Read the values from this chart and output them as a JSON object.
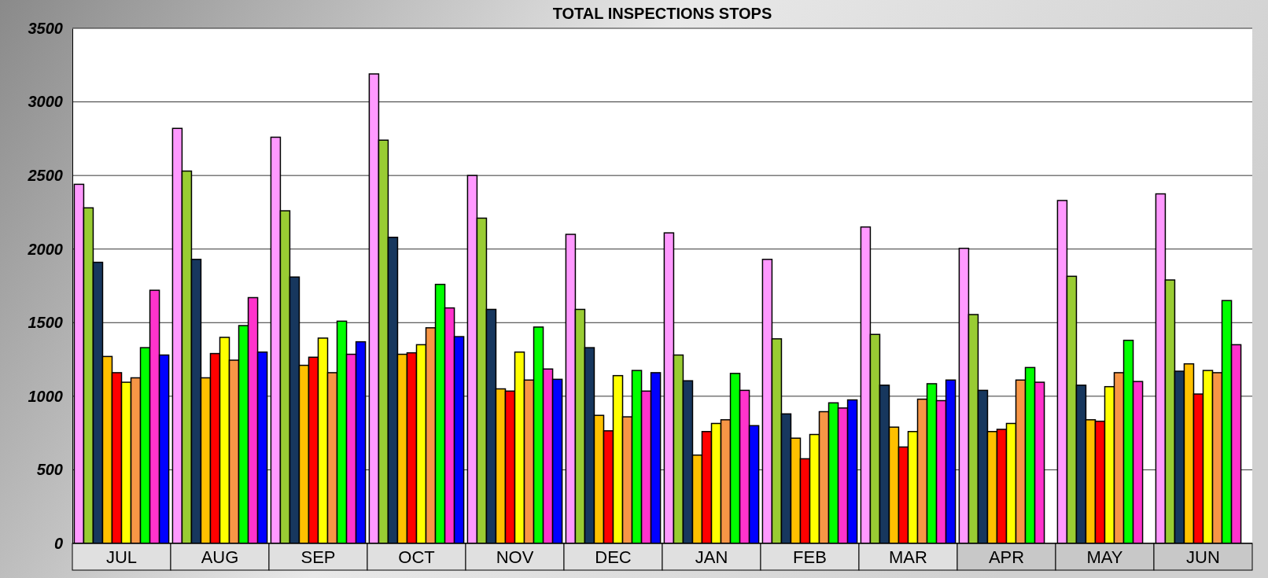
{
  "chart_data": {
    "type": "bar",
    "title": "TOTAL INSPECTIONS STOPS",
    "categories": [
      "JUL",
      "AUG",
      "SEP",
      "OCT",
      "NOV",
      "DEC",
      "JAN",
      "FEB",
      "MAR",
      "APR",
      "MAY",
      "JUN"
    ],
    "series": [
      {
        "color": "#ff99ff",
        "values": [
          2440,
          2820,
          2760,
          3190,
          2500,
          2100,
          2110,
          1930,
          2150,
          2005,
          2330,
          2375
        ]
      },
      {
        "color": "#99cc33",
        "values": [
          2280,
          2530,
          2260,
          2740,
          2210,
          1590,
          1280,
          1390,
          1420,
          1555,
          1815,
          1790
        ]
      },
      {
        "color": "#17375e",
        "values": [
          1910,
          1930,
          1810,
          2080,
          1590,
          1330,
          1105,
          880,
          1075,
          1040,
          1075,
          1170
        ]
      },
      {
        "color": "#ffc000",
        "values": [
          1270,
          1125,
          1210,
          1285,
          1050,
          870,
          600,
          715,
          790,
          760,
          840,
          1220
        ]
      },
      {
        "color": "#ff0000",
        "values": [
          1160,
          1290,
          1265,
          1295,
          1035,
          765,
          760,
          575,
          655,
          775,
          830,
          1015
        ]
      },
      {
        "color": "#ffff00",
        "values": [
          1095,
          1400,
          1395,
          1350,
          1300,
          1140,
          815,
          740,
          760,
          815,
          1065,
          1175
        ]
      },
      {
        "color": "#f79646",
        "values": [
          1125,
          1245,
          1160,
          1465,
          1110,
          860,
          840,
          895,
          980,
          1110,
          1160,
          1160
        ]
      },
      {
        "color": "#00ff00",
        "values": [
          1330,
          1480,
          1510,
          1760,
          1470,
          1175,
          1155,
          955,
          1085,
          1195,
          1380,
          1650
        ]
      },
      {
        "color": "#ff33cc",
        "values": [
          1720,
          1670,
          1285,
          1600,
          1185,
          1035,
          1040,
          920,
          970,
          1095,
          1100,
          1350
        ]
      },
      {
        "color": "#0000ff",
        "values": [
          1280,
          1300,
          1370,
          1405,
          1115,
          1160,
          800,
          975,
          1110,
          null,
          null,
          null
        ]
      }
    ],
    "ylim": [
      0,
      3500
    ],
    "yticks": [
      0,
      500,
      1000,
      1500,
      2000,
      2500,
      3000,
      3500
    ],
    "grid": "y"
  }
}
